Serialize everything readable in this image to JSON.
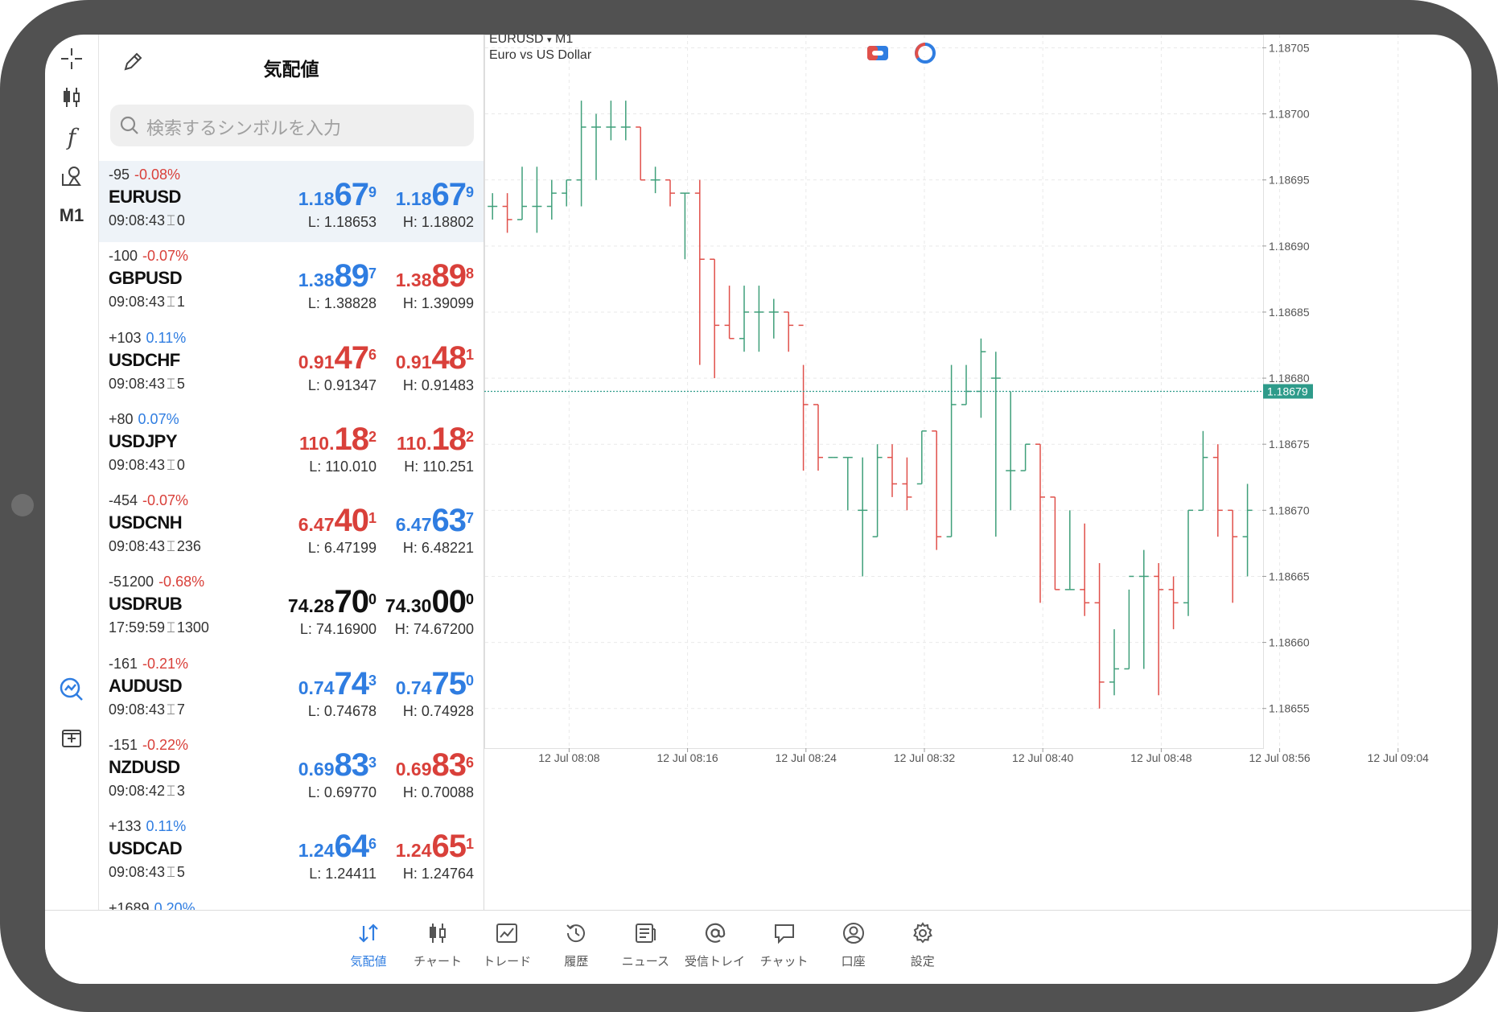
{
  "market_watch": {
    "title": "気配値",
    "search_placeholder": "検索するシンボルを入力",
    "rows": [
      {
        "change": "-95",
        "pct": "-0.08%",
        "pct_color": "red",
        "symbol": "EURUSD",
        "time": "09:08:43",
        "spread": "0",
        "bid_small": "1.18",
        "bid_big": "67",
        "bid_sup": "9",
        "bid_color": "blue",
        "ask_small": "1.18",
        "ask_big": "67",
        "ask_sup": "9",
        "ask_color": "blue",
        "low": "L: 1.18653",
        "high": "H: 1.18802",
        "selected": true
      },
      {
        "change": "-100",
        "pct": "-0.07%",
        "pct_color": "red",
        "symbol": "GBPUSD",
        "time": "09:08:43",
        "spread": "1",
        "bid_small": "1.38",
        "bid_big": "89",
        "bid_sup": "7",
        "bid_color": "blue",
        "ask_small": "1.38",
        "ask_big": "89",
        "ask_sup": "8",
        "ask_color": "red",
        "low": "L: 1.38828",
        "high": "H: 1.39099",
        "selected": false
      },
      {
        "change": "+103",
        "pct": "0.11%",
        "pct_color": "blue",
        "symbol": "USDCHF",
        "time": "09:08:43",
        "spread": "5",
        "bid_small": "0.91",
        "bid_big": "47",
        "bid_sup": "6",
        "bid_color": "red",
        "ask_small": "0.91",
        "ask_big": "48",
        "ask_sup": "1",
        "ask_color": "red",
        "low": "L: 0.91347",
        "high": "H: 0.91483",
        "selected": false
      },
      {
        "change": "+80",
        "pct": "0.07%",
        "pct_color": "blue",
        "symbol": "USDJPY",
        "time": "09:08:43",
        "spread": "0",
        "bid_small": "110.",
        "bid_big": "18",
        "bid_sup": "2",
        "bid_color": "red",
        "ask_small": "110.",
        "ask_big": "18",
        "ask_sup": "2",
        "ask_color": "red",
        "low": "L: 110.010",
        "high": "H: 110.251",
        "selected": false
      },
      {
        "change": "-454",
        "pct": "-0.07%",
        "pct_color": "red",
        "symbol": "USDCNH",
        "time": "09:08:43",
        "spread": "236",
        "bid_small": "6.47",
        "bid_big": "40",
        "bid_sup": "1",
        "bid_color": "red",
        "ask_small": "6.47",
        "ask_big": "63",
        "ask_sup": "7",
        "ask_color": "blue",
        "low": "L: 6.47199",
        "high": "H: 6.48221",
        "selected": false
      },
      {
        "change": "-51200",
        "pct": "-0.68%",
        "pct_color": "red",
        "symbol": "USDRUB",
        "time": "17:59:59",
        "spread": "1300",
        "bid_small": "74.28",
        "bid_big": "70",
        "bid_sup": "0",
        "bid_color": "black",
        "ask_small": "74.30",
        "ask_big": "00",
        "ask_sup": "0",
        "ask_color": "black",
        "low": "L: 74.16900",
        "high": "H: 74.67200",
        "selected": false
      },
      {
        "change": "-161",
        "pct": "-0.21%",
        "pct_color": "red",
        "symbol": "AUDUSD",
        "time": "09:08:43",
        "spread": "7",
        "bid_small": "0.74",
        "bid_big": "74",
        "bid_sup": "3",
        "bid_color": "blue",
        "ask_small": "0.74",
        "ask_big": "75",
        "ask_sup": "0",
        "ask_color": "blue",
        "low": "L: 0.74678",
        "high": "H: 0.74928",
        "selected": false
      },
      {
        "change": "-151",
        "pct": "-0.22%",
        "pct_color": "red",
        "symbol": "NZDUSD",
        "time": "09:08:42",
        "spread": "3",
        "bid_small": "0.69",
        "bid_big": "83",
        "bid_sup": "3",
        "bid_color": "blue",
        "ask_small": "0.69",
        "ask_big": "83",
        "ask_sup": "6",
        "ask_color": "red",
        "low": "L: 0.69770",
        "high": "H: 0.70088",
        "selected": false
      },
      {
        "change": "+133",
        "pct": "0.11%",
        "pct_color": "blue",
        "symbol": "USDCAD",
        "time": "09:08:43",
        "spread": "5",
        "bid_small": "1.24",
        "bid_big": "64",
        "bid_sup": "6",
        "bid_color": "blue",
        "ask_small": "1.24",
        "ask_big": "65",
        "ask_sup": "1",
        "ask_color": "red",
        "low": "L: 1.24411",
        "high": "H: 1.24764",
        "selected": false
      },
      {
        "change": "+1689",
        "pct": "0.20%",
        "pct_color": "blue",
        "symbol": "",
        "time": "",
        "spread": "",
        "bid_small": "",
        "bid_big": "",
        "bid_sup": "",
        "bid_color": "blue",
        "ask_small": "",
        "ask_big": "",
        "ask_sup": "",
        "ask_color": "blue",
        "low": "",
        "high": "",
        "selected": false
      }
    ]
  },
  "toolbar": {
    "timeframe": "M1",
    "icons": [
      "crosshair-icon",
      "chart-type-icon",
      "indicators-icon",
      "objects-icon",
      "timeframe",
      "trading-signals-icon",
      "add-chart-icon"
    ]
  },
  "chart": {
    "symbol": "EURUSD",
    "timeframe": "M1",
    "description": "Euro vs US Dollar",
    "current_price_label": "1.18679",
    "up_color": "#3f9f7a",
    "down_color": "#e0504a",
    "current_line_color": "#2e9b8a"
  },
  "chart_data": {
    "type": "ohlc",
    "y_ticks": [
      "1.18705",
      "1.18700",
      "1.18695",
      "1.18690",
      "1.18685",
      "1.18680",
      "1.18675",
      "1.18670",
      "1.18665",
      "1.18660",
      "1.18655"
    ],
    "x_ticks": [
      "12 Jul 08:08",
      "12 Jul 08:16",
      "12 Jul 08:24",
      "12 Jul 08:32",
      "12 Jul 08:40",
      "12 Jul 08:48",
      "12 Jul 08:56",
      "12 Jul 09:04"
    ],
    "ylim": [
      1.18652,
      1.18706
    ],
    "current_price": 1.18679,
    "bars": [
      [
        1.18693,
        1.18694,
        1.18692,
        1.18693
      ],
      [
        1.18693,
        1.18694,
        1.18691,
        1.18692
      ],
      [
        1.18692,
        1.18696,
        1.18692,
        1.18693
      ],
      [
        1.18693,
        1.18696,
        1.18691,
        1.18693
      ],
      [
        1.18693,
        1.18695,
        1.18692,
        1.18694
      ],
      [
        1.18694,
        1.18695,
        1.18693,
        1.18695
      ],
      [
        1.18695,
        1.18701,
        1.18693,
        1.18699
      ],
      [
        1.18699,
        1.187,
        1.18695,
        1.18699
      ],
      [
        1.18699,
        1.18701,
        1.18698,
        1.18699
      ],
      [
        1.18699,
        1.18701,
        1.18698,
        1.18699
      ],
      [
        1.18699,
        1.18699,
        1.18695,
        1.18695
      ],
      [
        1.18695,
        1.18696,
        1.18694,
        1.18695
      ],
      [
        1.18695,
        1.18695,
        1.18693,
        1.18694
      ],
      [
        1.18694,
        1.18694,
        1.18689,
        1.18694
      ],
      [
        1.18694,
        1.18695,
        1.18681,
        1.18689
      ],
      [
        1.18689,
        1.18689,
        1.1868,
        1.18684
      ],
      [
        1.18684,
        1.18687,
        1.18683,
        1.18683
      ],
      [
        1.18683,
        1.18687,
        1.18682,
        1.18685
      ],
      [
        1.18685,
        1.18687,
        1.18682,
        1.18685
      ],
      [
        1.18685,
        1.18686,
        1.18683,
        1.18685
      ],
      [
        1.18685,
        1.18685,
        1.18682,
        1.18684
      ],
      [
        1.18684,
        1.18681,
        1.18673,
        1.18678
      ],
      [
        1.18678,
        1.18678,
        1.18673,
        1.18674
      ],
      [
        1.18674,
        1.18674,
        1.18674,
        1.18674
      ],
      [
        1.18674,
        1.18674,
        1.1867,
        1.18674
      ],
      [
        1.1867,
        1.18674,
        1.18665,
        1.1867
      ],
      [
        1.18668,
        1.18675,
        1.18668,
        1.18674
      ],
      [
        1.18674,
        1.18675,
        1.18671,
        1.18672
      ],
      [
        1.18672,
        1.18674,
        1.1867,
        1.18671
      ],
      [
        1.18672,
        1.18676,
        1.18672,
        1.18676
      ],
      [
        1.18676,
        1.18676,
        1.18667,
        1.18668
      ],
      [
        1.18668,
        1.18681,
        1.18668,
        1.18678
      ],
      [
        1.18678,
        1.18681,
        1.18678,
        1.18679
      ],
      [
        1.18679,
        1.18683,
        1.18677,
        1.18682
      ],
      [
        1.1868,
        1.18682,
        1.18668,
        1.1868
      ],
      [
        1.18673,
        1.18679,
        1.1867,
        1.18673
      ],
      [
        1.18673,
        1.18675,
        1.18673,
        1.18675
      ],
      [
        1.18675,
        1.18675,
        1.18663,
        1.18671
      ],
      [
        1.18671,
        1.18671,
        1.18664,
        1.18664
      ],
      [
        1.18664,
        1.1867,
        1.18664,
        1.18664
      ],
      [
        1.18664,
        1.18669,
        1.18662,
        1.18663
      ],
      [
        1.18663,
        1.18666,
        1.18655,
        1.18657
      ],
      [
        1.18657,
        1.18661,
        1.18656,
        1.18658
      ],
      [
        1.18658,
        1.18664,
        1.18658,
        1.18665
      ],
      [
        1.18665,
        1.18667,
        1.18658,
        1.18665
      ],
      [
        1.18665,
        1.18666,
        1.18656,
        1.18664
      ],
      [
        1.18664,
        1.18665,
        1.18661,
        1.18663
      ],
      [
        1.18663,
        1.1867,
        1.18662,
        1.1867
      ],
      [
        1.1867,
        1.18676,
        1.1867,
        1.18674
      ],
      [
        1.18674,
        1.18675,
        1.18668,
        1.1867
      ],
      [
        1.1867,
        1.1867,
        1.18663,
        1.18668
      ],
      [
        1.18668,
        1.18672,
        1.18665,
        1.1867
      ]
    ]
  },
  "bottom_nav": {
    "items": [
      {
        "label": "気配値",
        "icon": "quotes-icon",
        "active": true
      },
      {
        "label": "チャート",
        "icon": "chart-icon",
        "active": false
      },
      {
        "label": "トレード",
        "icon": "trade-icon",
        "active": false
      },
      {
        "label": "履歴",
        "icon": "history-icon",
        "active": false
      },
      {
        "label": "ニュース",
        "icon": "news-icon",
        "active": false
      },
      {
        "label": "受信トレイ",
        "icon": "mailbox-icon",
        "active": false
      },
      {
        "label": "チャット",
        "icon": "chat-icon",
        "active": false
      },
      {
        "label": "口座",
        "icon": "account-icon",
        "active": false
      },
      {
        "label": "設定",
        "icon": "settings-icon",
        "active": false
      }
    ]
  }
}
